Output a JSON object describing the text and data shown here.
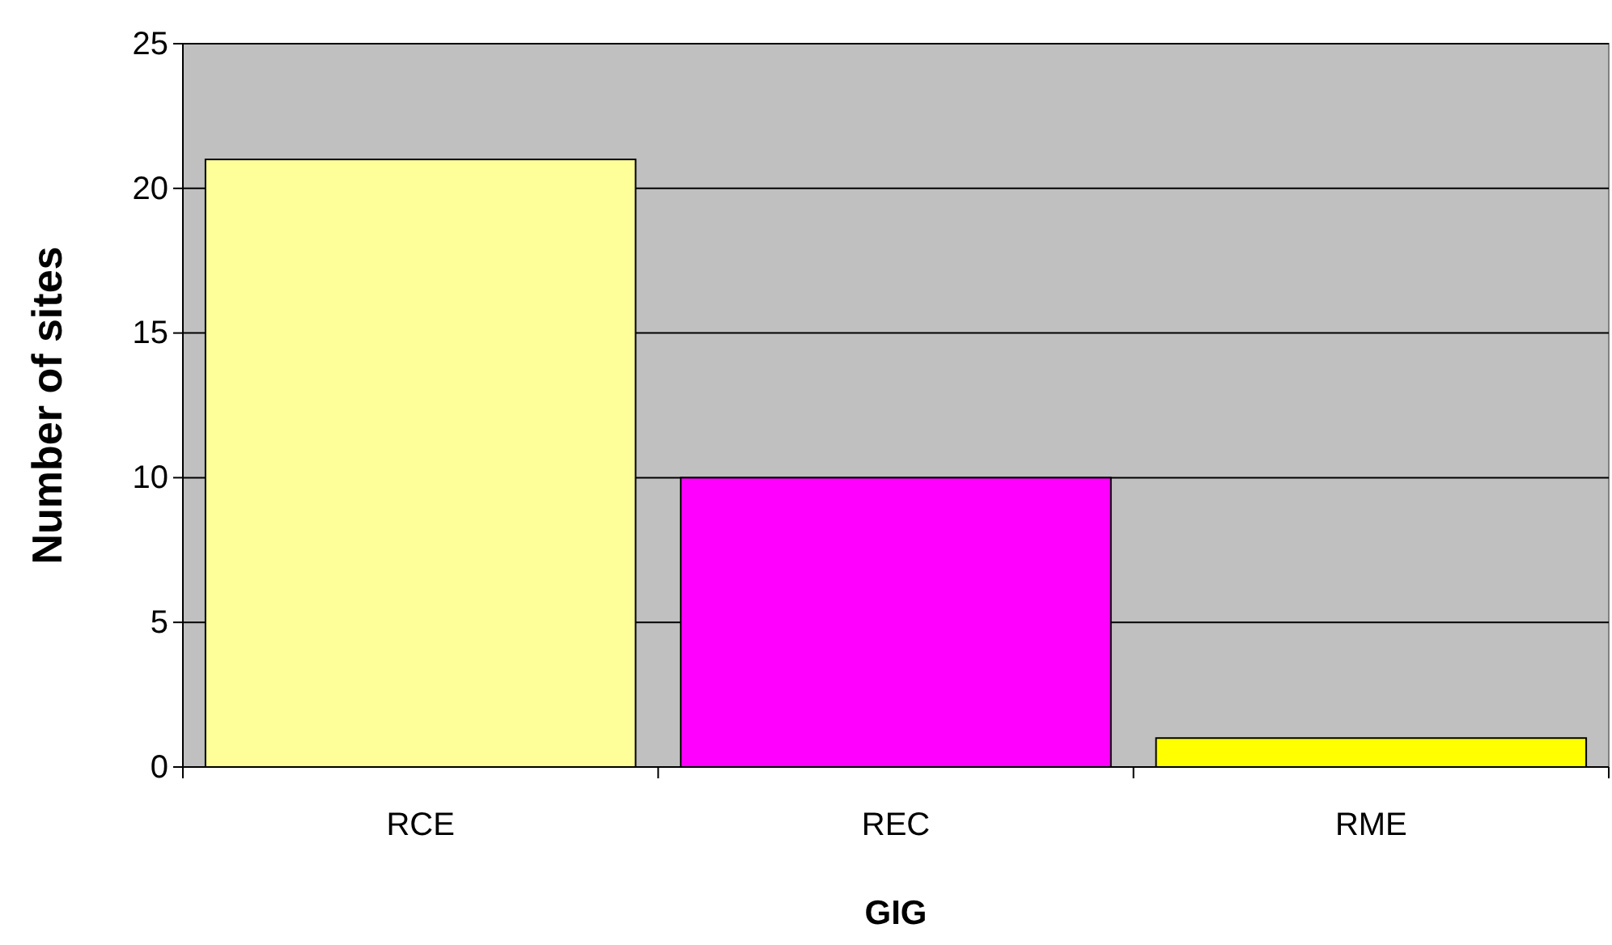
{
  "chart_data": {
    "type": "bar",
    "xlabel": "GIG",
    "ylabel": "Number of sites",
    "categories": [
      "RCE",
      "REC",
      "RME"
    ],
    "values": [
      21,
      10,
      1
    ],
    "colors": [
      "#ffff99",
      "#ff00ff",
      "#ffff00"
    ],
    "ylim": [
      0,
      25
    ],
    "yticks": [
      0,
      5,
      10,
      15,
      20,
      25
    ],
    "grid": "y"
  }
}
